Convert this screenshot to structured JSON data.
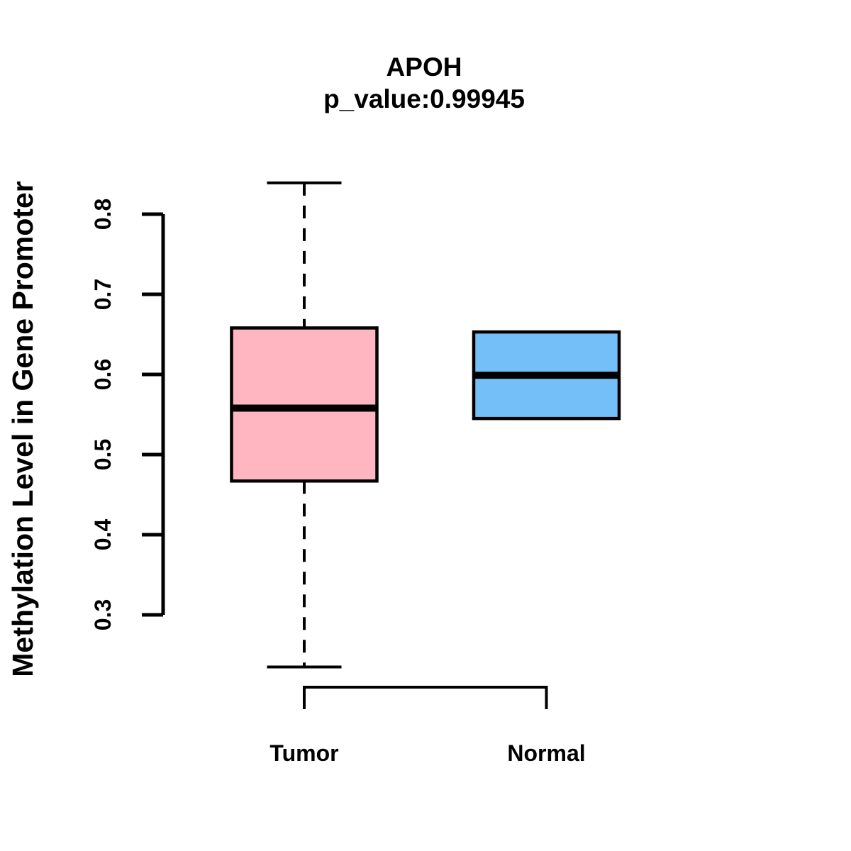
{
  "chart_data": {
    "type": "boxplot",
    "title": "APOH",
    "subtitle": "p_value:0.99945",
    "p_value": "0.99945",
    "ylabel": "Methylation Level in Gene Promoter",
    "xlabel": "",
    "categories": [
      "Tumor",
      "Normal"
    ],
    "y_ticks": [
      "0.3",
      "0.4",
      "0.5",
      "0.6",
      "0.7",
      "0.8"
    ],
    "ylim": [
      0.23,
      0.84
    ],
    "grid": false,
    "legend_position": "none",
    "series": [
      {
        "name": "Tumor",
        "fill_color": "#FFB6C1",
        "min": 0.235,
        "q1": 0.467,
        "median": 0.558,
        "q3": 0.658,
        "max": 0.839
      },
      {
        "name": "Normal",
        "fill_color": "#74BFF7",
        "min": 0.545,
        "q1": 0.545,
        "median": 0.599,
        "q3": 0.653,
        "max": 0.653
      }
    ],
    "line_color": "#000000",
    "background_color": "#ffffff"
  }
}
